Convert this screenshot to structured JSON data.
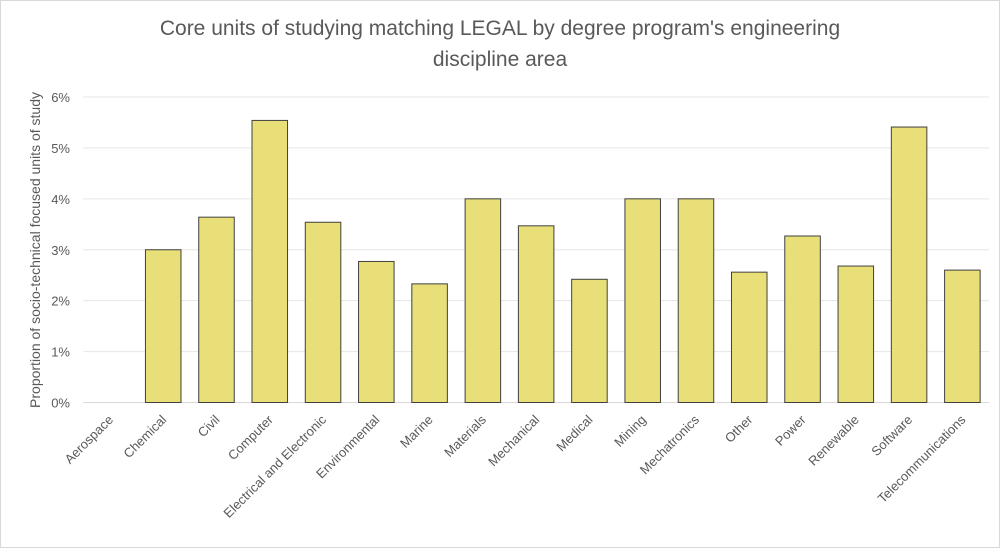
{
  "chart_data": {
    "type": "bar",
    "title_line1": "Core units of studying matching LEGAL by degree program's engineering",
    "title_line2": "discipline area",
    "xlabel": "",
    "ylabel": "Proportion of socio-technical focused units of study",
    "categories": [
      "Aerospace",
      "Chemical",
      "Civil",
      "Computer",
      "Electrical and Electronic",
      "Environmental",
      "Marine",
      "Materials",
      "Mechanical",
      "Medical",
      "Mining",
      "Mechatronics",
      "Other",
      "Power",
      "Renewable",
      "Software",
      "Telecommunications"
    ],
    "values": [
      0,
      3.0,
      3.64,
      5.54,
      3.54,
      2.77,
      2.33,
      4.0,
      3.47,
      2.42,
      4.0,
      4.0,
      2.56,
      3.27,
      2.68,
      5.41,
      2.6
    ],
    "ylim": [
      0,
      6
    ],
    "yticks": [
      0,
      1,
      2,
      3,
      4,
      5,
      6
    ],
    "ytick_labels": [
      "0%",
      "1%",
      "2%",
      "3%",
      "4%",
      "5%",
      "6%"
    ],
    "grid": true,
    "legend": "none",
    "bar_color": "#e8df78",
    "bar_edge": "#404040"
  }
}
